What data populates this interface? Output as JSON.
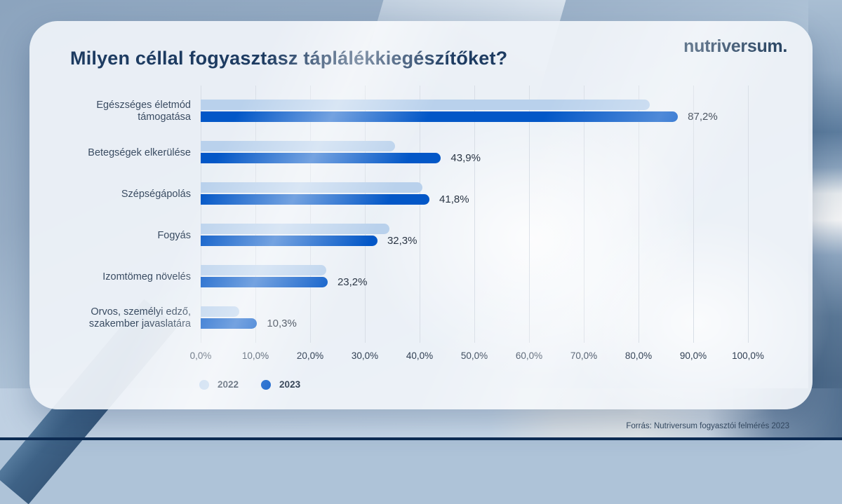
{
  "card": {
    "logo_text": "nutriversum."
  },
  "chart_data": {
    "type": "bar",
    "orientation": "horizontal",
    "title": "Milyen céllal fogyasztasz táplálékkiegészítőket?",
    "categories": [
      "Egészséges életmód\ntámogatása",
      "Betegségek elkerülése",
      "Szépségápolás",
      "Fogyás",
      "Izomtömeg növelés",
      "Orvos, személyi edző,\nszakember javaslatára"
    ],
    "series": [
      {
        "name": "2022",
        "color": "#b9d1ec",
        "values": [
          82,
          35.5,
          40.5,
          34.5,
          23,
          7
        ],
        "value_labels": [
          "",
          "",
          "",
          "",
          "",
          ""
        ]
      },
      {
        "name": "2023",
        "color": "#0357c7",
        "values": [
          87.2,
          43.9,
          41.8,
          32.3,
          23.2,
          10.3
        ],
        "value_labels": [
          "87,2%",
          "43,9%",
          "41,8%",
          "32,3%",
          "23,2%",
          "10,3%"
        ]
      }
    ],
    "x_axis": {
      "min": 0,
      "max": 100,
      "tick_step": 10,
      "tick_labels": [
        "0,0%",
        "10,0%",
        "20,0%",
        "30,0%",
        "40,0%",
        "50,0%",
        "60,0%",
        "70,0%",
        "80,0%",
        "90,0%",
        "100,0%"
      ]
    },
    "legend": {
      "position": "bottom-left",
      "entries": [
        "2022",
        "2023"
      ]
    },
    "grid": "vertical"
  },
  "colors": {
    "series_2022": "#b9d1ec",
    "series_2023": "#0357c7",
    "title_text": "#1d3b61",
    "bottom_strip": "#0d2b52"
  },
  "footer": {
    "source_text": "Forrás: Nutriversum fogyasztói felmérés 2023"
  }
}
